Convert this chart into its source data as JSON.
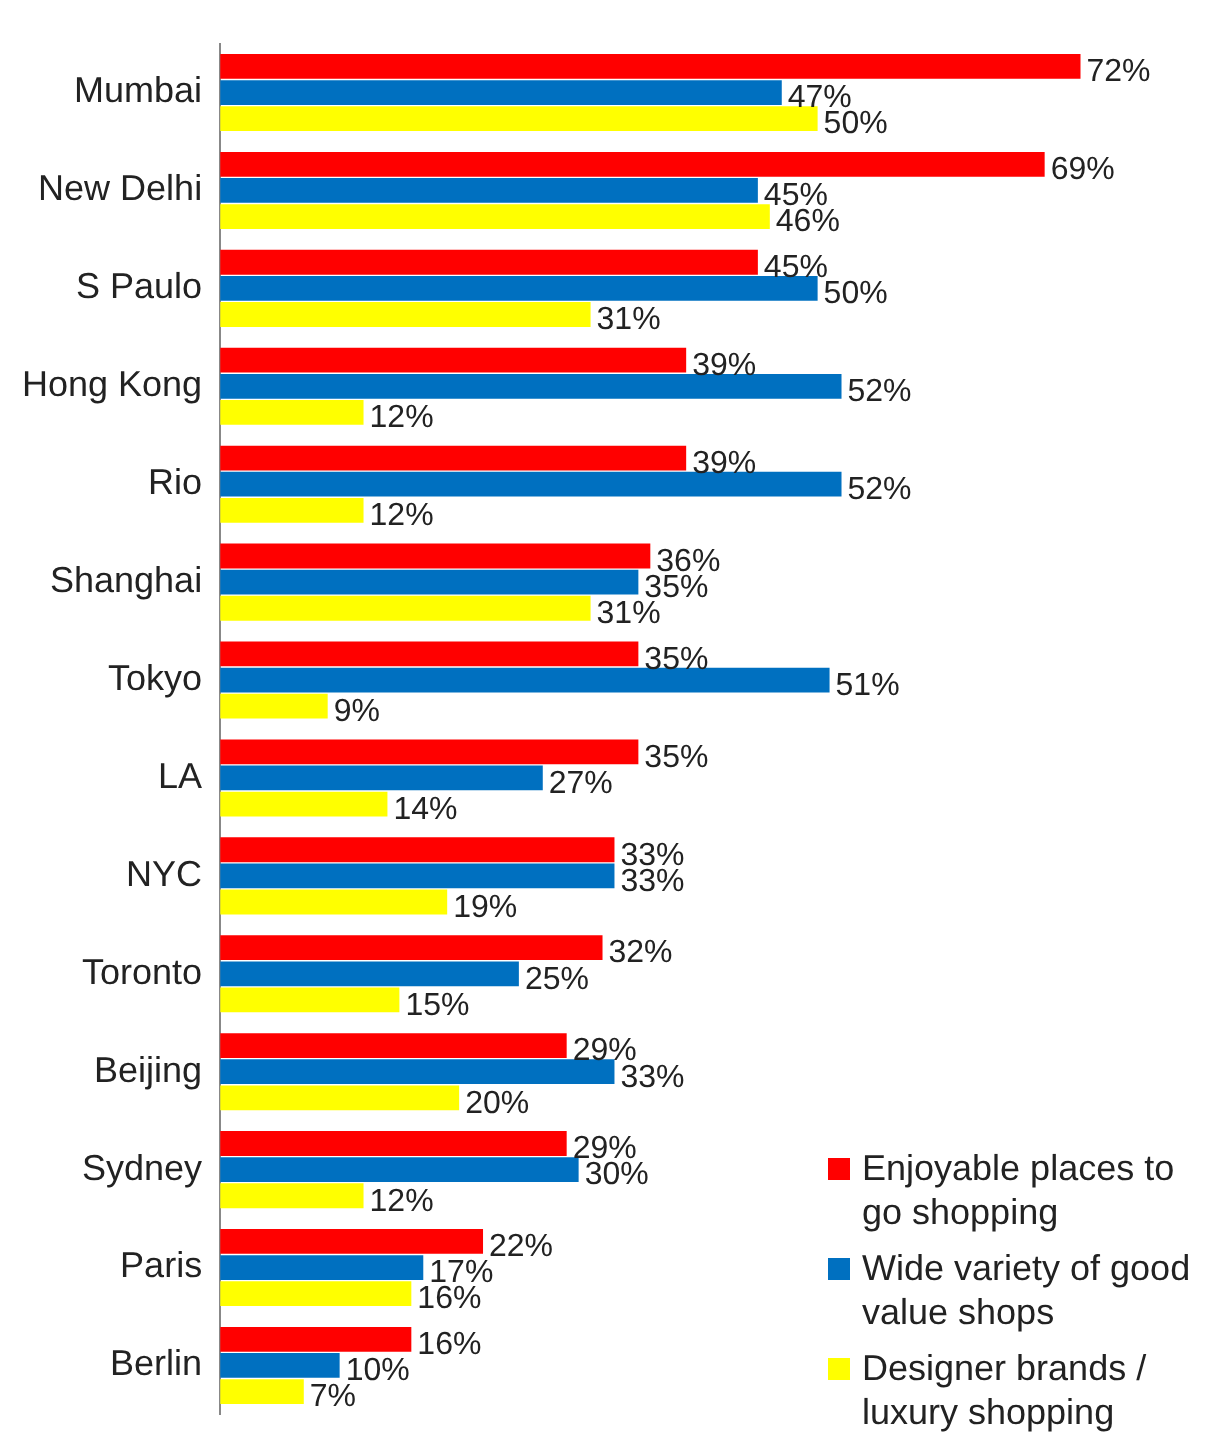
{
  "chart_data": {
    "type": "bar",
    "orientation": "horizontal",
    "categories": [
      "Mumbai",
      "New Delhi",
      "S Paulo",
      "Hong Kong",
      "Rio",
      "Shanghai",
      "Tokyo",
      "LA",
      "NYC",
      "Toronto",
      "Beijing",
      "Sydney",
      "Paris",
      "Berlin"
    ],
    "xlim": [
      0,
      82
    ],
    "legend": "bottom right",
    "grid": false,
    "series": [
      {
        "name": "Enjoyable places to go shopping",
        "color": "#ff0000",
        "values": [
          72,
          69,
          45,
          39,
          39,
          36,
          35,
          35,
          33,
          32,
          29,
          29,
          22,
          16
        ],
        "value_labels": [
          "72%",
          "69%",
          "45%",
          "39%",
          "39%",
          "36%",
          "35%",
          "35%",
          "33%",
          "32%",
          "29%",
          "29%",
          "22%",
          "16%"
        ]
      },
      {
        "name": "Wide variety of good value shops",
        "color": "#0070c0",
        "values": [
          47,
          45,
          50,
          52,
          52,
          35,
          51,
          27,
          33,
          25,
          33,
          30,
          17,
          10
        ],
        "value_labels": [
          "47%",
          "45%",
          "50%",
          "52%",
          "52%",
          "35%",
          "51%",
          "27%",
          "33%",
          "25%",
          "33%",
          "30%",
          "17%",
          "10%"
        ]
      },
      {
        "name": "Designer brands / luxury shopping",
        "color": "#ffff00",
        "values": [
          50,
          46,
          31,
          12,
          12,
          31,
          9,
          14,
          19,
          15,
          20,
          12,
          16,
          7
        ],
        "value_labels": [
          "50%",
          "46%",
          "31%",
          "12%",
          "12%",
          "31%",
          "9%",
          "14%",
          "19%",
          "15%",
          "20%",
          "12%",
          "16%",
          "7%"
        ]
      }
    ]
  }
}
